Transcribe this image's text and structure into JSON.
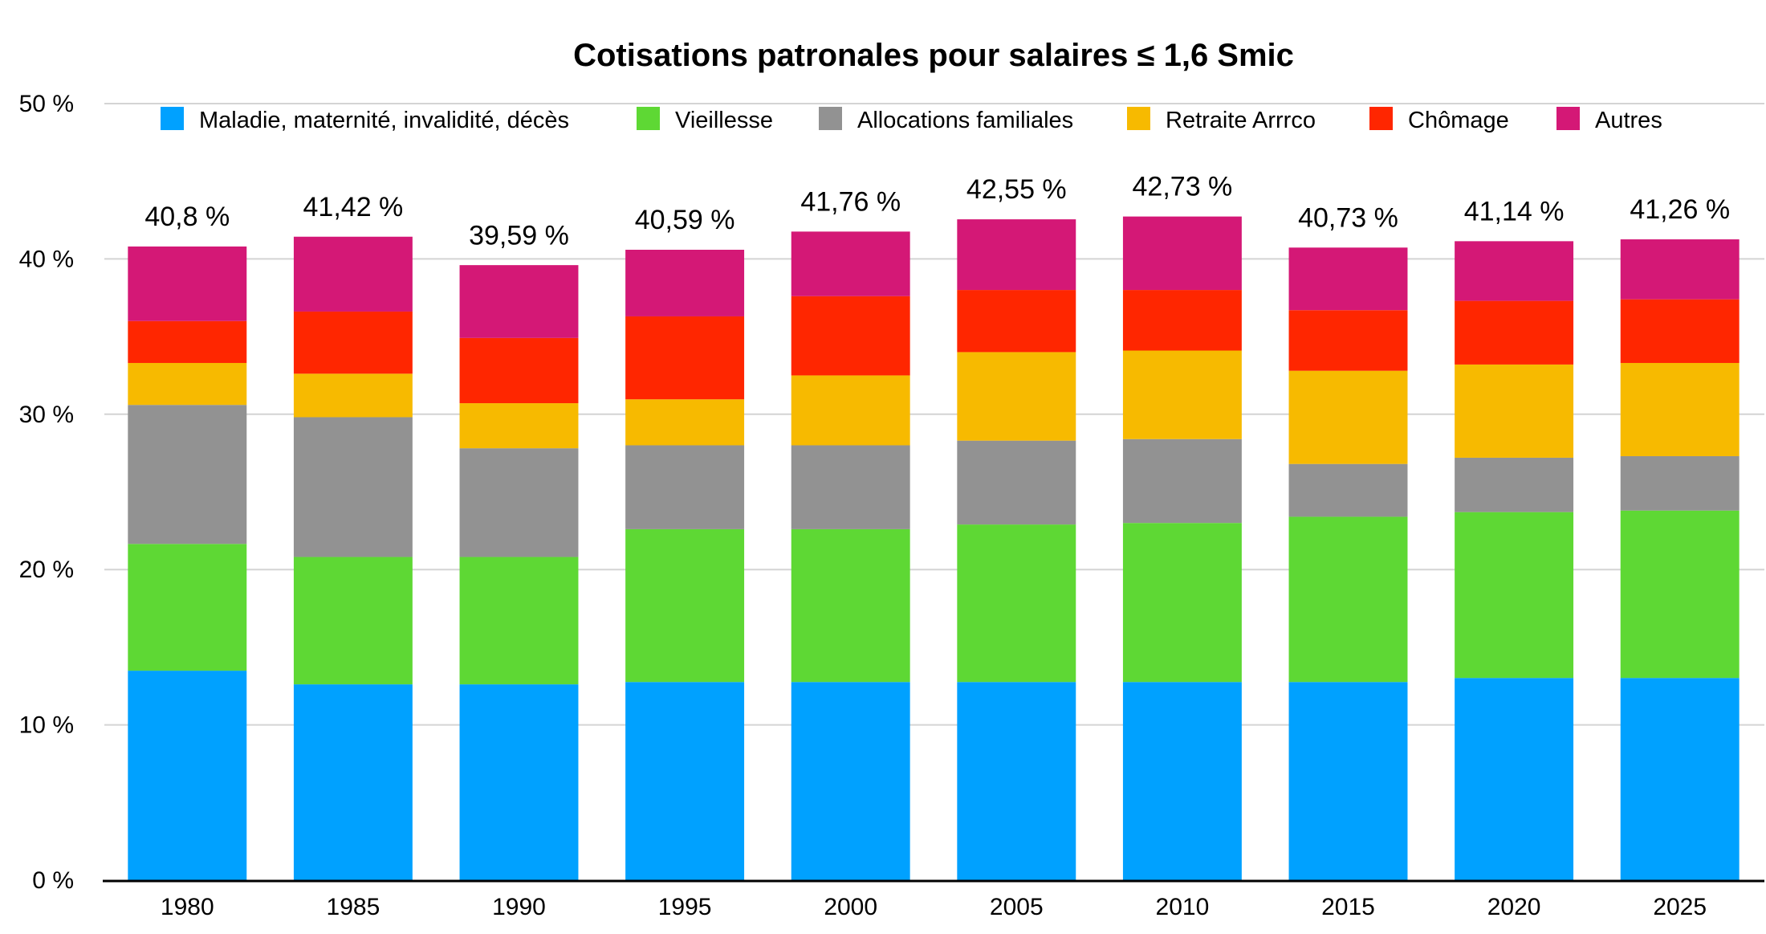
{
  "chart_data": {
    "type": "bar",
    "stacked": true,
    "title": "Cotisations patronales pour salaires ≤ 1,6 Smic",
    "xlabel": "",
    "ylabel": "",
    "ylim": [
      0,
      50
    ],
    "yticks": [
      0,
      10,
      20,
      30,
      40,
      50
    ],
    "ytick_labels": [
      "0 %",
      "10 %",
      "20 %",
      "30 %",
      "40 %",
      "50 %"
    ],
    "grid": true,
    "legend_position": "top",
    "categories": [
      "1980",
      "1985",
      "1990",
      "1995",
      "2000",
      "2005",
      "2010",
      "2015",
      "2020",
      "2025"
    ],
    "series": [
      {
        "name": "Maladie, maternité, invalidité, décès",
        "color": "#00A1FF",
        "values": [
          13.49,
          12.61,
          12.61,
          12.76,
          12.76,
          12.76,
          12.76,
          12.76,
          13.02,
          13.02
        ]
      },
      {
        "name": "Vieillesse",
        "color": "#5ED834",
        "values": [
          8.16,
          8.2,
          8.2,
          9.84,
          9.84,
          10.14,
          10.24,
          10.64,
          10.68,
          10.78
        ]
      },
      {
        "name": "Allocations familiales",
        "color": "#929292",
        "values": [
          8.95,
          9.0,
          7.0,
          5.4,
          5.4,
          5.4,
          5.4,
          3.4,
          3.5,
          3.5
        ]
      },
      {
        "name": "Retraite Arrrco",
        "color": "#F7BA00",
        "values": [
          2.7,
          2.8,
          2.9,
          2.96,
          4.5,
          5.7,
          5.7,
          6.0,
          6.0,
          6.0
        ]
      },
      {
        "name": "Chômage",
        "color": "#FF2600",
        "values": [
          2.7,
          4.0,
          4.2,
          5.34,
          5.1,
          4.0,
          3.9,
          3.9,
          4.1,
          4.1
        ]
      },
      {
        "name": "Autres",
        "color": "#D41876",
        "values": [
          4.8,
          4.82,
          4.69,
          4.29,
          4.16,
          4.55,
          4.73,
          4.03,
          3.84,
          3.86
        ]
      }
    ],
    "totals": [
      40.8,
      41.42,
      39.59,
      40.59,
      41.76,
      42.55,
      42.73,
      40.73,
      41.14,
      41.26
    ],
    "total_labels": [
      "40,8 %",
      "41,42 %",
      "39,59 %",
      "40,59 %",
      "41,76 %",
      "42,55 %",
      "42,73 %",
      "40,73 %",
      "41,14 %",
      "41,26 %"
    ]
  },
  "colors": {
    "gridline": "#D4D4D4",
    "axis": "#000000",
    "text": "#000000"
  }
}
